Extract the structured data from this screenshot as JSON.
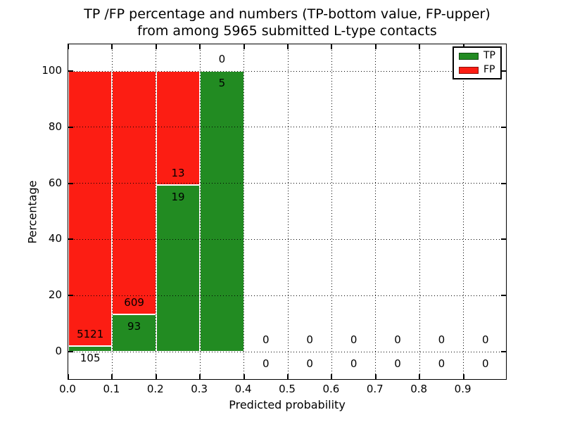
{
  "figure": {
    "title_line1": "TP /FP percentage and numbers (TP-bottom value, FP-upper)",
    "title_line2": "from among 5965 submitted L-type contacts",
    "xlabel": "Predicted probability",
    "ylabel": "Percentage"
  },
  "chart_data": {
    "type": "bar",
    "stacked": true,
    "title": "TP /FP percentage and numbers (TP-bottom value, FP-upper) from among 5965 submitted L-type contacts",
    "xlabel": "Predicted probability",
    "ylabel": "Percentage",
    "xlim": [
      0.0,
      1.0
    ],
    "ylim": [
      -11,
      110
    ],
    "grid": "dotted",
    "legend_position": "upper right",
    "total_contacts": 5965,
    "bin_edges": [
      0.0,
      0.1,
      0.2,
      0.3,
      0.4,
      0.5,
      0.6,
      0.7,
      0.8,
      0.9,
      1.0
    ],
    "xticks": [
      "0.0",
      "0.1",
      "0.2",
      "0.3",
      "0.4",
      "0.5",
      "0.6",
      "0.7",
      "0.8",
      "0.9"
    ],
    "yticks": [
      "0",
      "20",
      "40",
      "60",
      "80",
      "100"
    ],
    "series": [
      {
        "name": "TP",
        "color": "#228b22",
        "counts": [
          105,
          93,
          19,
          5,
          0,
          0,
          0,
          0,
          0,
          0
        ],
        "percentages": [
          2.0,
          13.2,
          59.4,
          100.0,
          0,
          0,
          0,
          0,
          0,
          0
        ]
      },
      {
        "name": "FP",
        "color": "#fc1d13",
        "counts": [
          5121,
          609,
          13,
          0,
          0,
          0,
          0,
          0,
          0,
          0
        ],
        "percentages": [
          98.0,
          86.8,
          40.6,
          0,
          0,
          0,
          0,
          0,
          0,
          0
        ]
      }
    ]
  }
}
